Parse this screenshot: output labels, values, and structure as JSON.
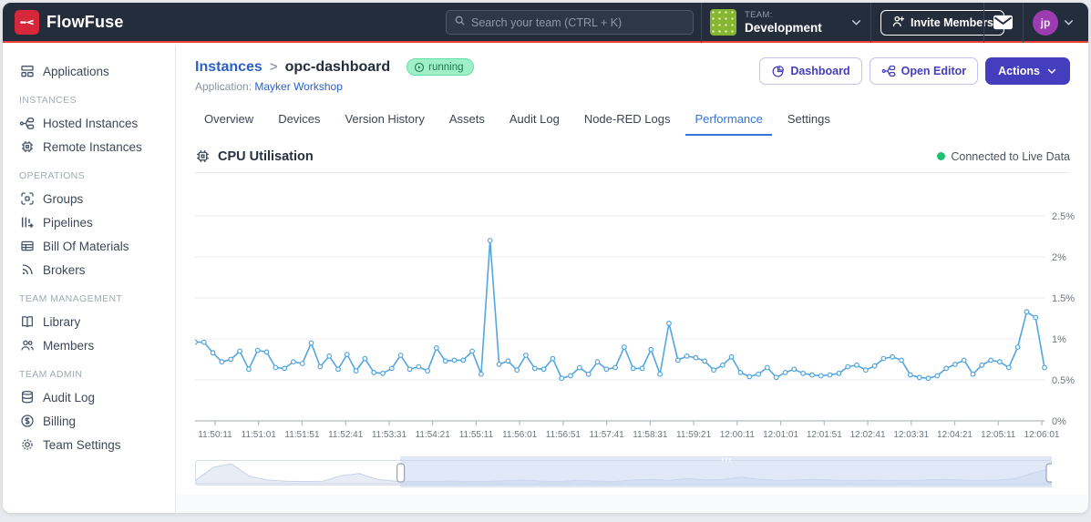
{
  "header": {
    "brand": "FlowFuse",
    "search_placeholder": "Search your team (CTRL + K)",
    "team_label": "TEAM:",
    "team_name": "Development",
    "invite_label": "Invite Members",
    "avatar_initials": "jp"
  },
  "sidebar": {
    "items": [
      {
        "label": "Applications"
      },
      {
        "label": "Hosted Instances"
      },
      {
        "label": "Remote Instances"
      },
      {
        "label": "Groups"
      },
      {
        "label": "Pipelines"
      },
      {
        "label": "Bill Of Materials"
      },
      {
        "label": "Brokers"
      },
      {
        "label": "Library"
      },
      {
        "label": "Members"
      },
      {
        "label": "Audit Log"
      },
      {
        "label": "Billing"
      },
      {
        "label": "Team Settings"
      }
    ],
    "sections": [
      "INSTANCES",
      "OPERATIONS",
      "TEAM MANAGEMENT",
      "TEAM ADMIN"
    ]
  },
  "breadcrumb": {
    "parent": "Instances",
    "separator": ">",
    "current": "opc-dashboard",
    "status": "running",
    "app_label": "Application:",
    "app_name": "Mayker Workshop"
  },
  "actions": {
    "dashboard": "Dashboard",
    "open_editor": "Open Editor",
    "actions_menu": "Actions"
  },
  "tabs": {
    "items": [
      "Overview",
      "Devices",
      "Version History",
      "Assets",
      "Audit Log",
      "Node-RED Logs",
      "Performance",
      "Settings"
    ],
    "active": "Performance"
  },
  "panel": {
    "title": "CPU Utilisation",
    "live_status": "Connected to Live Data"
  },
  "colors": {
    "header_bg": "#232d3b",
    "accent_red": "#e8413c",
    "brand_red": "#d6273b",
    "indigo": "#443dbe",
    "link_blue": "#2b60c8",
    "tab_active_blue": "#3576d6",
    "running_green": "#9ff0c8",
    "live_dot_green": "#1fbf72",
    "chart_line": "#54a6de",
    "grid_line": "#e9ecf1",
    "axis_line": "#b3bac4",
    "brush_selection": "#c9d7f4"
  },
  "chart_data": {
    "type": "line",
    "title": "CPU Utilisation",
    "unit": "%",
    "grid": true,
    "legend": "none",
    "ylim": [
      0,
      2.75
    ],
    "y_tick_values": [
      0,
      0.5,
      1,
      1.5,
      2,
      2.5
    ],
    "y_tick_labels": [
      "0%",
      "0.5%",
      "1%",
      "1.5%",
      "2%",
      "2.5%"
    ],
    "x_ticks": [
      "11:50:11",
      "11:51:01",
      "11:51:51",
      "11:52:41",
      "11:53:31",
      "11:54:21",
      "11:55:11",
      "11:56:01",
      "11:56:51",
      "11:57:41",
      "11:58:31",
      "11:59:21",
      "12:00:11",
      "12:01:01",
      "12:01:51",
      "12:02:41",
      "12:03:31",
      "12:04:21",
      "12:05:11",
      "12:06:01"
    ],
    "sample_interval_seconds": 10,
    "values": [
      0.96,
      0.96,
      0.83,
      0.72,
      0.75,
      0.85,
      0.63,
      0.86,
      0.84,
      0.65,
      0.64,
      0.72,
      0.7,
      0.95,
      0.66,
      0.79,
      0.63,
      0.81,
      0.61,
      0.76,
      0.59,
      0.58,
      0.64,
      0.8,
      0.63,
      0.66,
      0.61,
      0.89,
      0.73,
      0.74,
      0.74,
      0.85,
      0.57,
      2.2,
      0.69,
      0.73,
      0.62,
      0.8,
      0.64,
      0.63,
      0.76,
      0.52,
      0.55,
      0.65,
      0.57,
      0.72,
      0.63,
      0.65,
      0.9,
      0.64,
      0.64,
      0.87,
      0.57,
      1.19,
      0.74,
      0.79,
      0.77,
      0.73,
      0.62,
      0.68,
      0.78,
      0.59,
      0.54,
      0.57,
      0.65,
      0.53,
      0.59,
      0.63,
      0.58,
      0.56,
      0.55,
      0.56,
      0.58,
      0.66,
      0.68,
      0.62,
      0.67,
      0.76,
      0.78,
      0.74,
      0.56,
      0.53,
      0.52,
      0.55,
      0.64,
      0.69,
      0.74,
      0.57,
      0.68,
      0.74,
      0.72,
      0.65,
      0.9,
      1.33,
      1.26,
      0.65
    ],
    "overview_brush": {
      "selection_start_frac": 0.24,
      "selection_end_frac": 1.0,
      "values": [
        0.08,
        0.45,
        0.55,
        0.2,
        0.1,
        0.07,
        0.06,
        0.07,
        0.22,
        0.28,
        0.12,
        0.07,
        0.06,
        0.06,
        0.07,
        0.06,
        0.06,
        0.08,
        0.1,
        0.07,
        0.06,
        0.09,
        0.07,
        0.06,
        0.1,
        0.12,
        0.09,
        0.14,
        0.1,
        0.12,
        0.18,
        0.12,
        0.09,
        0.1,
        0.12,
        0.1,
        0.08,
        0.1,
        0.09,
        0.08,
        0.1,
        0.12,
        0.1,
        0.09,
        0.1,
        0.14,
        0.3,
        0.42
      ]
    }
  }
}
